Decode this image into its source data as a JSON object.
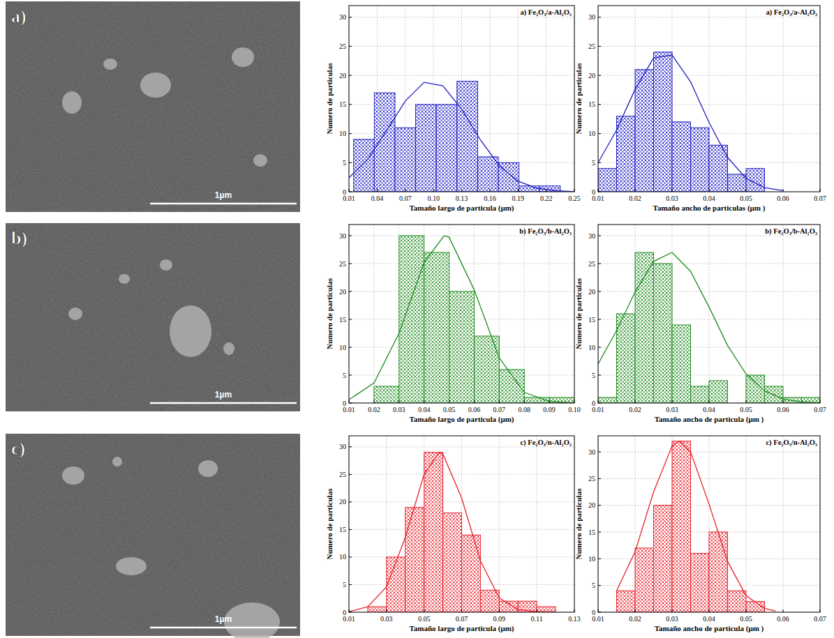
{
  "images": [
    {
      "label": "a)",
      "scale_bar": "1µm"
    },
    {
      "label": "b)",
      "scale_bar": "1µm"
    },
    {
      "label": "c)",
      "scale_bar": "1µm"
    }
  ],
  "chart_data": [
    {
      "type": "histogram",
      "title": "a) Fe₂O₃/a-Al₂O₃",
      "xlabel": "Tamaño largo de particula (μm)",
      "ylabel": "Numero de particulas",
      "color": "#1c1cc4",
      "grid": true,
      "bins": [
        0.015,
        0.037,
        0.059,
        0.081,
        0.103,
        0.125,
        0.147,
        0.169,
        0.191,
        0.213,
        0.235
      ],
      "values": [
        9,
        17,
        11,
        15,
        15,
        19,
        6,
        5,
        1,
        1
      ],
      "curve": {
        "x": [
          0.01,
          0.03,
          0.05,
          0.07,
          0.09,
          0.11,
          0.13,
          0.15,
          0.17,
          0.19,
          0.21,
          0.23,
          0.25
        ],
        "y": [
          2.4,
          5.6,
          10.5,
          15.6,
          18.8,
          18.2,
          14.2,
          8.9,
          4.5,
          1.8,
          0.6,
          0.2,
          0.0
        ]
      },
      "xlim": [
        0.01,
        0.25
      ],
      "xticks": [
        0.01,
        0.04,
        0.07,
        {
          "value": 0.1,
          "label": "0.10"
        },
        0.13,
        0.16,
        0.19,
        0.22,
        0.25
      ],
      "ylim": [
        0,
        32
      ],
      "yticks": [
        0,
        5,
        10,
        15,
        20,
        25,
        30
      ]
    },
    {
      "type": "histogram",
      "title": "a) Fe₂O₃/a-Al₂O₃",
      "xlabel": "Tamaño ancho de particulas (μm )",
      "ylabel": "Numero de particulas",
      "color": "#1c1cc4",
      "grid": true,
      "bins": [
        0.01,
        0.015,
        0.02,
        0.025,
        0.03,
        0.035,
        0.04,
        0.045,
        0.05,
        0.055
      ],
      "values": [
        4,
        13,
        21,
        24,
        12,
        11,
        8,
        3,
        4
      ],
      "curve": {
        "x": [
          0.01,
          0.015,
          0.02,
          0.025,
          0.03,
          0.035,
          0.04,
          0.045,
          0.05,
          0.055,
          0.06
        ],
        "y": [
          5.0,
          10.6,
          17.6,
          23.0,
          23.5,
          18.9,
          11.9,
          5.9,
          2.3,
          0.7,
          0.2
        ]
      },
      "xlim": [
        0.01,
        0.07
      ],
      "xticks": [
        0.01,
        0.02,
        0.03,
        0.04,
        0.05,
        0.06,
        0.07
      ],
      "ylim": [
        0,
        32
      ],
      "yticks": [
        0,
        5,
        10,
        15,
        20,
        25,
        30
      ]
    },
    {
      "type": "histogram",
      "title": "b) Fe₂O₃/b-Al₂O₃",
      "xlabel": "Tamaño largo de particula (μm)",
      "ylabel": "Numero de particulas",
      "color": "#1e8c1e",
      "grid": true,
      "bins": [
        0.02,
        0.03,
        0.04,
        0.05,
        0.06,
        0.07,
        0.08,
        0.09,
        0.1
      ],
      "values": [
        3,
        30,
        27,
        20,
        12,
        6,
        1,
        1
      ],
      "curve": {
        "x": [
          0.01,
          0.02,
          0.03,
          0.04,
          0.048,
          0.05,
          0.06,
          0.07,
          0.08,
          0.09,
          0.1
        ],
        "y": [
          0.6,
          3.6,
          12.5,
          25.2,
          30.0,
          29.7,
          20.3,
          8.1,
          1.9,
          0.3,
          0.0
        ]
      },
      "xlim": [
        0.01,
        0.1
      ],
      "xticks": [
        0.01,
        0.02,
        0.03,
        0.04,
        0.05,
        0.06,
        0.07,
        0.08,
        0.09,
        {
          "value": 0.1,
          "label": "0.10"
        }
      ],
      "ylim": [
        0,
        32
      ],
      "yticks": [
        0,
        5,
        10,
        15,
        20,
        25,
        30
      ]
    },
    {
      "type": "histogram",
      "title": "b) Fe₂O₃/b-Al₂O₃",
      "xlabel": "Tamaño ancho de particula (μm )",
      "ylabel": "Numero de particulas",
      "color": "#1e8c1e",
      "grid": true,
      "bins": [
        0.01,
        0.015,
        0.02,
        0.025,
        0.03,
        0.035,
        0.04,
        0.045,
        0.05,
        0.055,
        0.06,
        0.065,
        0.07
      ],
      "values": [
        1,
        16,
        27,
        25,
        14,
        3,
        4,
        0,
        5,
        3,
        1,
        1
      ],
      "curve": {
        "x": [
          0.01,
          0.015,
          0.02,
          0.025,
          0.03,
          0.035,
          0.04,
          0.045,
          0.05,
          0.055,
          0.06,
          0.065,
          0.07
        ],
        "y": [
          7.0,
          13.0,
          19.9,
          25.4,
          27.0,
          23.6,
          17.2,
          10.3,
          5.2,
          2.2,
          0.7,
          0.2,
          0.0
        ]
      },
      "xlim": [
        0.01,
        0.07
      ],
      "xticks": [
        0.01,
        0.02,
        0.03,
        0.04,
        0.05,
        0.06,
        0.07
      ],
      "ylim": [
        0,
        32
      ],
      "yticks": [
        0,
        5,
        10,
        15,
        20,
        25,
        30
      ]
    },
    {
      "type": "histogram",
      "title": "c) Fe₂O₃/n-Al₂O₃",
      "xlabel": "Tamaño largo de particula (μm)",
      "ylabel": "Numero de particulas",
      "color": "#e8202a",
      "grid": true,
      "bins": [
        0.02,
        0.03,
        0.04,
        0.05,
        0.06,
        0.07,
        0.08,
        0.09,
        0.1,
        0.11,
        0.12
      ],
      "values": [
        1,
        10,
        19,
        29,
        18,
        14,
        4,
        2,
        2,
        1
      ],
      "curve": {
        "x": [
          0.01,
          0.02,
          0.03,
          0.04,
          0.05,
          0.058,
          0.06,
          0.07,
          0.08,
          0.09,
          0.1,
          0.11,
          0.12
        ],
        "y": [
          0.1,
          1.0,
          4.6,
          13.6,
          25.0,
          29.0,
          28.7,
          20.7,
          9.3,
          2.6,
          0.5,
          0.1,
          0.0
        ]
      },
      "xlim": [
        0.01,
        0.13
      ],
      "xticks": [
        0.01,
        0.03,
        0.05,
        0.07,
        0.09,
        0.11,
        0.13
      ],
      "ylim": [
        0,
        32
      ],
      "yticks": [
        0,
        5,
        10,
        15,
        20,
        25,
        30
      ]
    },
    {
      "type": "histogram",
      "title": "c) Fe₂O₃/n-Al₂O₃",
      "xlabel": "Tamaño ancho de particula (μm )",
      "ylabel": "Numero de particulas",
      "color": "#e8202a",
      "grid": true,
      "bins": [
        0.015,
        0.02,
        0.025,
        0.03,
        0.035,
        0.04,
        0.045,
        0.05,
        0.055
      ],
      "values": [
        4,
        12,
        20,
        32,
        11,
        15,
        4,
        2
      ],
      "curve": {
        "x": [
          0.015,
          0.02,
          0.025,
          0.03,
          0.032,
          0.035,
          0.04,
          0.045,
          0.05,
          0.055,
          0.058
        ],
        "y": [
          4.0,
          11.3,
          22.5,
          31.1,
          32.0,
          30.0,
          20.2,
          9.5,
          3.1,
          0.7,
          0.2
        ]
      },
      "xlim": [
        0.01,
        0.07
      ],
      "xticks": [
        0.01,
        0.02,
        0.03,
        0.04,
        0.05,
        0.06,
        0.07
      ],
      "ylim": [
        0,
        33
      ],
      "yticks": [
        0,
        5,
        10,
        15,
        20,
        25,
        30
      ]
    }
  ]
}
